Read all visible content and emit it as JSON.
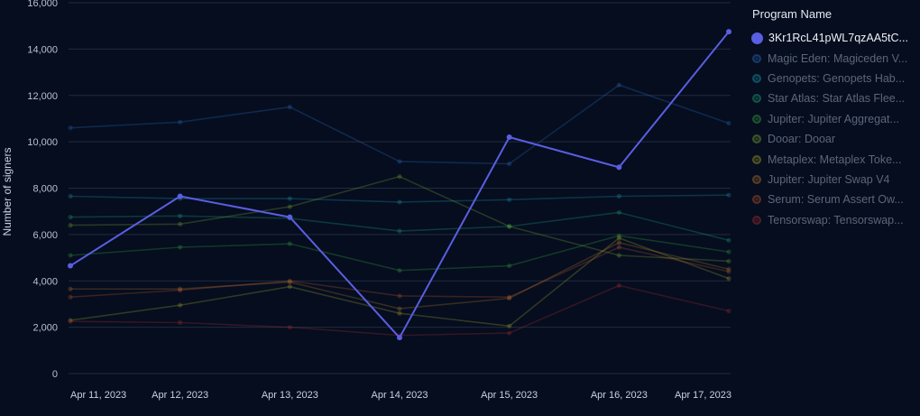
{
  "chart_data": {
    "type": "line",
    "title": "",
    "xlabel": "",
    "ylabel": "Number of signers",
    "ylim": [
      0,
      16000
    ],
    "yticks": [
      0,
      2000,
      4000,
      6000,
      8000,
      10000,
      12000,
      14000,
      16000
    ],
    "ytick_labels": [
      "0",
      "2,000",
      "4,000",
      "6,000",
      "8,000",
      "10,000",
      "12,000",
      "14,000",
      "16,000"
    ],
    "categories": [
      "Apr 11, 2023",
      "Apr 12, 2023",
      "Apr 13, 2023",
      "Apr 14, 2023",
      "Apr 15, 2023",
      "Apr 16, 2023",
      "Apr 17, 2023"
    ],
    "legend_title": "Program Name",
    "legend_position": "right",
    "grid": true,
    "series": [
      {
        "name": "3Kr1RcL41pWL7qzAA5tC...",
        "color": "#5a5ee0",
        "highlighted": true,
        "values": [
          4650,
          7650,
          6750,
          1550,
          10200,
          8900,
          14750
        ]
      },
      {
        "name": "Magic Eden: Magiceden V...",
        "color": "#2f6fbf",
        "highlighted": false,
        "values": [
          10600,
          10850,
          11500,
          9150,
          9050,
          12450,
          10800
        ]
      },
      {
        "name": "Genopets: Genopets Hab...",
        "color": "#1f9bb0",
        "highlighted": false,
        "values": [
          7650,
          7550,
          7550,
          7400,
          7500,
          7650,
          7700
        ]
      },
      {
        "name": "Star Atlas: Star Atlas Flee...",
        "color": "#1fa87a",
        "highlighted": false,
        "values": [
          6750,
          6800,
          6700,
          6150,
          6350,
          6950,
          5750
        ]
      },
      {
        "name": "Jupiter: Jupiter Aggregat...",
        "color": "#3aa83e",
        "highlighted": false,
        "values": [
          5100,
          5450,
          5600,
          4450,
          4650,
          5950,
          5250
        ]
      },
      {
        "name": "Dooar: Dooar",
        "color": "#7fa82e",
        "highlighted": false,
        "values": [
          6400,
          6450,
          7200,
          8500,
          6350,
          5100,
          4850
        ]
      },
      {
        "name": "Metaplex: Metaplex Toke...",
        "color": "#a8a82a",
        "highlighted": false,
        "values": [
          2300,
          2950,
          3750,
          2600,
          2050,
          5850,
          4100
        ]
      },
      {
        "name": "Jupiter: Jupiter Swap V4",
        "color": "#b8792a",
        "highlighted": false,
        "values": [
          3650,
          3650,
          3950,
          2800,
          3250,
          5650,
          4500
        ]
      },
      {
        "name": "Serum: Serum Assert Ow...",
        "color": "#c0552e",
        "highlighted": false,
        "values": [
          3300,
          3600,
          4000,
          3350,
          3300,
          5450,
          4400
        ]
      },
      {
        "name": "Tensorswap: Tensorswap...",
        "color": "#b0302e",
        "highlighted": false,
        "values": [
          2250,
          2200,
          2000,
          1650,
          1750,
          3800,
          2700
        ]
      }
    ]
  }
}
